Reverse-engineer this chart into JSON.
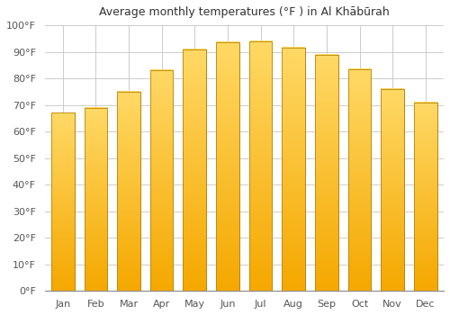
{
  "title": "Average monthly temperatures (°F ) in Al Khābūrah",
  "months": [
    "Jan",
    "Feb",
    "Mar",
    "Apr",
    "May",
    "Jun",
    "Jul",
    "Aug",
    "Sep",
    "Oct",
    "Nov",
    "Dec"
  ],
  "values": [
    67,
    69,
    75,
    83,
    91,
    93.5,
    94,
    91.5,
    89,
    83.5,
    76,
    71
  ],
  "bar_color_bottom": "#F5A800",
  "bar_color_top": "#FFD966",
  "bar_edge_color": "#B8860B",
  "ylim": [
    0,
    100
  ],
  "ytick_step": 10,
  "background_color": "#ffffff",
  "plot_bg_color": "#ffffff",
  "grid_color": "#cccccc",
  "title_fontsize": 9,
  "tick_fontsize": 8,
  "figsize": [
    5.0,
    3.5
  ],
  "dpi": 100
}
